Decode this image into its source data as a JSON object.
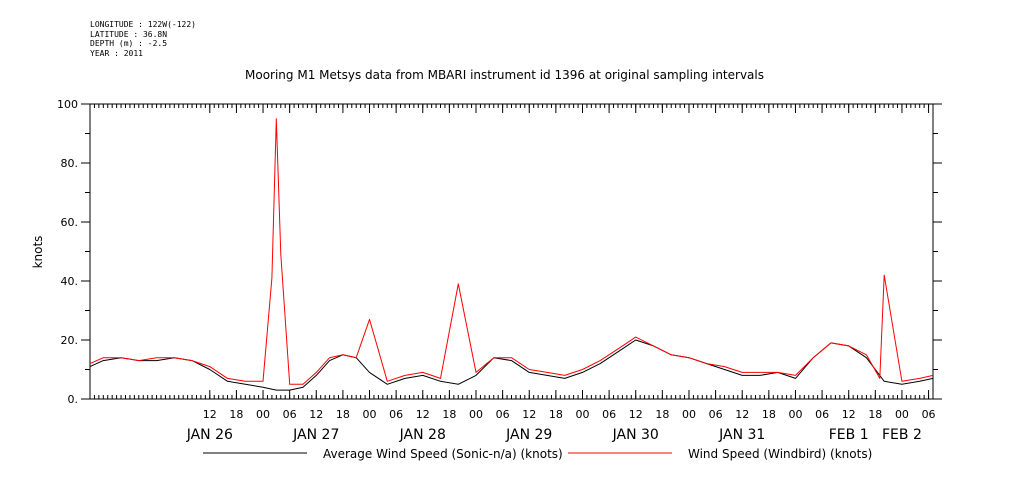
{
  "meta": {
    "longitude": "LONGITUDE : 122W(-122)",
    "latitude": "LATITUDE : 36.8N",
    "depth": "DEPTH (m) : -2.5",
    "year": "YEAR : 2011"
  },
  "chart_data": {
    "type": "line",
    "title": "Mooring M1 Metsys data from MBARI instrument id 1396 at original sampling intervals",
    "ylabel": "knots",
    "xlabel": "",
    "ylim": [
      0,
      100
    ],
    "y_ticks": [
      0,
      20,
      40,
      60,
      80,
      100
    ],
    "y_tick_labels": [
      "0.",
      "20.",
      "40.",
      "60.",
      "80.",
      "100"
    ],
    "xlim": [
      "2011-01-25T09:00",
      "2011-02-02T07:00"
    ],
    "hour_ticks": [
      {
        "t": "2011-01-26T12:00",
        "label": "12"
      },
      {
        "t": "2011-01-26T18:00",
        "label": "18"
      },
      {
        "t": "2011-01-27T00:00",
        "label": "00"
      },
      {
        "t": "2011-01-27T06:00",
        "label": "06"
      },
      {
        "t": "2011-01-27T12:00",
        "label": "12"
      },
      {
        "t": "2011-01-27T18:00",
        "label": "18"
      },
      {
        "t": "2011-01-28T00:00",
        "label": "00"
      },
      {
        "t": "2011-01-28T06:00",
        "label": "06"
      },
      {
        "t": "2011-01-28T12:00",
        "label": "12"
      },
      {
        "t": "2011-01-28T18:00",
        "label": "18"
      },
      {
        "t": "2011-01-29T00:00",
        "label": "00"
      },
      {
        "t": "2011-01-29T06:00",
        "label": "06"
      },
      {
        "t": "2011-01-29T12:00",
        "label": "12"
      },
      {
        "t": "2011-01-29T18:00",
        "label": "18"
      },
      {
        "t": "2011-01-30T00:00",
        "label": "00"
      },
      {
        "t": "2011-01-30T06:00",
        "label": "06"
      },
      {
        "t": "2011-01-30T12:00",
        "label": "12"
      },
      {
        "t": "2011-01-30T18:00",
        "label": "18"
      },
      {
        "t": "2011-01-31T00:00",
        "label": "00"
      },
      {
        "t": "2011-01-31T06:00",
        "label": "06"
      },
      {
        "t": "2011-01-31T12:00",
        "label": "12"
      },
      {
        "t": "2011-01-31T18:00",
        "label": "18"
      },
      {
        "t": "2011-02-01T00:00",
        "label": "00"
      },
      {
        "t": "2011-02-01T06:00",
        "label": "06"
      },
      {
        "t": "2011-02-01T12:00",
        "label": "12"
      },
      {
        "t": "2011-02-01T18:00",
        "label": "18"
      },
      {
        "t": "2011-02-02T00:00",
        "label": "00"
      },
      {
        "t": "2011-02-02T06:00",
        "label": "06"
      }
    ],
    "day_labels": [
      {
        "t": "2011-01-26T12:00",
        "label": "JAN 26"
      },
      {
        "t": "2011-01-27T12:00",
        "label": "JAN 27"
      },
      {
        "t": "2011-01-28T12:00",
        "label": "JAN 28"
      },
      {
        "t": "2011-01-29T12:00",
        "label": "JAN 29"
      },
      {
        "t": "2011-01-30T12:00",
        "label": "JAN 30"
      },
      {
        "t": "2011-01-31T12:00",
        "label": "JAN 31"
      },
      {
        "t": "2011-02-01T12:00",
        "label": "FEB  1"
      },
      {
        "t": "2011-02-02T00:00",
        "label": "FEB  2"
      }
    ],
    "series": [
      {
        "name": "Average Wind Speed (Sonic-n/a) (knots)",
        "color": "#000000",
        "x": [
          "2011-01-25T09:00",
          "2011-01-25T12:00",
          "2011-01-25T16:00",
          "2011-01-25T20:00",
          "2011-01-26T00:00",
          "2011-01-26T04:00",
          "2011-01-26T08:00",
          "2011-01-26T12:00",
          "2011-01-26T16:00",
          "2011-01-26T20:00",
          "2011-01-27T00:00",
          "2011-01-27T03:00",
          "2011-01-27T06:00",
          "2011-01-27T09:00",
          "2011-01-27T12:00",
          "2011-01-27T15:00",
          "2011-01-27T18:00",
          "2011-01-27T21:00",
          "2011-01-28T00:00",
          "2011-01-28T04:00",
          "2011-01-28T08:00",
          "2011-01-28T12:00",
          "2011-01-28T16:00",
          "2011-01-28T20:00",
          "2011-01-29T00:00",
          "2011-01-29T04:00",
          "2011-01-29T08:00",
          "2011-01-29T12:00",
          "2011-01-29T16:00",
          "2011-01-29T20:00",
          "2011-01-30T00:00",
          "2011-01-30T04:00",
          "2011-01-30T08:00",
          "2011-01-30T12:00",
          "2011-01-30T16:00",
          "2011-01-30T20:00",
          "2011-01-31T00:00",
          "2011-01-31T04:00",
          "2011-01-31T08:00",
          "2011-01-31T12:00",
          "2011-01-31T16:00",
          "2011-01-31T20:00",
          "2011-02-01T00:00",
          "2011-02-01T04:00",
          "2011-02-01T08:00",
          "2011-02-01T12:00",
          "2011-02-01T16:00",
          "2011-02-01T20:00",
          "2011-02-02T00:00",
          "2011-02-02T04:00",
          "2011-02-02T07:00"
        ],
        "values": [
          11,
          13,
          14,
          13,
          13,
          14,
          13,
          10,
          6,
          5,
          4,
          3,
          3,
          4,
          8,
          13,
          15,
          14,
          9,
          5,
          7,
          8,
          6,
          5,
          8,
          14,
          13,
          9,
          8,
          7,
          9,
          12,
          16,
          20,
          18,
          15,
          14,
          12,
          10,
          8,
          8,
          9,
          7,
          14,
          19,
          18,
          14,
          6,
          5,
          6,
          7
        ]
      },
      {
        "name": "Wind Speed (Windbird) (knots)",
        "color": "#ff0000",
        "x": [
          "2011-01-25T09:00",
          "2011-01-25T12:00",
          "2011-01-25T16:00",
          "2011-01-25T20:00",
          "2011-01-26T00:00",
          "2011-01-26T04:00",
          "2011-01-26T08:00",
          "2011-01-26T12:00",
          "2011-01-26T16:00",
          "2011-01-26T20:00",
          "2011-01-27T00:00",
          "2011-01-27T02:00",
          "2011-01-27T03:00",
          "2011-01-27T04:00",
          "2011-01-27T06:00",
          "2011-01-27T09:00",
          "2011-01-27T12:00",
          "2011-01-27T15:00",
          "2011-01-27T18:00",
          "2011-01-27T21:00",
          "2011-01-28T00:00",
          "2011-01-28T04:00",
          "2011-01-28T08:00",
          "2011-01-28T12:00",
          "2011-01-28T16:00",
          "2011-01-28T20:00",
          "2011-01-29T00:00",
          "2011-01-29T04:00",
          "2011-01-29T08:00",
          "2011-01-29T12:00",
          "2011-01-29T16:00",
          "2011-01-29T20:00",
          "2011-01-30T00:00",
          "2011-01-30T04:00",
          "2011-01-30T08:00",
          "2011-01-30T12:00",
          "2011-01-30T16:00",
          "2011-01-30T20:00",
          "2011-01-31T00:00",
          "2011-01-31T04:00",
          "2011-01-31T08:00",
          "2011-01-31T12:00",
          "2011-01-31T16:00",
          "2011-01-31T20:00",
          "2011-02-01T00:00",
          "2011-02-01T04:00",
          "2011-02-01T08:00",
          "2011-02-01T12:00",
          "2011-02-01T16:00",
          "2011-02-01T19:00",
          "2011-02-01T20:00",
          "2011-02-02T00:00",
          "2011-02-02T04:00",
          "2011-02-02T07:00"
        ],
        "values": [
          12,
          14,
          14,
          13,
          14,
          14,
          13,
          11,
          7,
          6,
          6,
          41,
          95,
          49,
          5,
          5,
          9,
          14,
          15,
          14,
          27,
          6,
          8,
          9,
          7,
          39,
          9,
          14,
          14,
          10,
          9,
          8,
          10,
          13,
          17,
          21,
          18,
          15,
          14,
          12,
          11,
          9,
          9,
          9,
          8,
          14,
          19,
          18,
          15,
          7,
          42,
          6,
          7,
          8
        ]
      }
    ],
    "grid": false,
    "legend": "bottom-center"
  }
}
